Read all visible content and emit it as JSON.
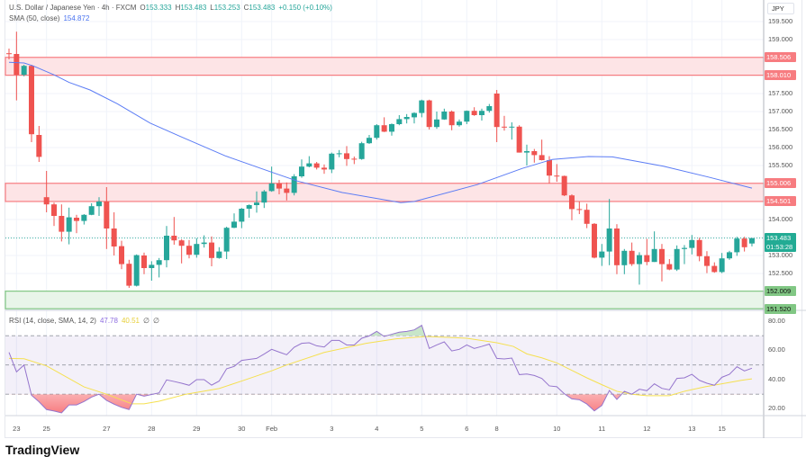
{
  "header": {
    "symbol": "U.S. Dollar / Japanese Yen · 4h · FXCM",
    "open_label": "O",
    "open": "153.333",
    "high_label": "H",
    "high": "153.483",
    "low_label": "L",
    "low": "153.253",
    "close_label": "C",
    "close": "153.483",
    "change": "+0.150 (+0.10%)"
  },
  "sma_legend": {
    "label": "SMA (50, close)",
    "value": "154.872"
  },
  "rsi_legend": {
    "label": "RSI (14, close, SMA, 14, 2)",
    "rsi": "47.78",
    "rsi_sma": "40.51",
    "extra1": "∅",
    "extra2": "∅"
  },
  "currency": "JPY",
  "logo": "TradingView",
  "colors": {
    "up": "#26a69a",
    "down": "#ef5350",
    "sma": "#5b7cf5",
    "rsi": "#9575cd",
    "rsi_sma": "#f5e050",
    "resistance": "#f77c80",
    "support": "#81c784",
    "last_price": "#22ab94"
  },
  "price_axis": [
    "159.500",
    "159.000",
    "157.500",
    "157.000",
    "156.500",
    "156.000",
    "155.500",
    "154.000",
    "153.000",
    "152.500"
  ],
  "zones": [
    {
      "type": "resistance",
      "top": 158.506,
      "bottom": 158.01,
      "top_label": "158.506",
      "bottom_label": "158.010"
    },
    {
      "type": "resistance",
      "top": 155.006,
      "bottom": 154.501,
      "top_label": "155.006",
      "bottom_label": "154.501"
    },
    {
      "type": "support",
      "top": 152.009,
      "bottom": 151.52,
      "top_label": "152.009",
      "bottom_label": "151.520"
    }
  ],
  "last_price": {
    "value": 153.483,
    "label": "153.483",
    "countdown": "01:53:28"
  },
  "rsi_axis": [
    "80.00",
    "60.00",
    "40.00",
    "20.00"
  ],
  "time_axis": [
    {
      "label": "23",
      "i": 1
    },
    {
      "label": "25",
      "i": 5
    },
    {
      "label": "27",
      "i": 13
    },
    {
      "label": "28",
      "i": 19
    },
    {
      "label": "29",
      "i": 25
    },
    {
      "label": "30",
      "i": 31
    },
    {
      "label": "Feb",
      "i": 35
    },
    {
      "label": "3",
      "i": 43
    },
    {
      "label": "4",
      "i": 49
    },
    {
      "label": "5",
      "i": 55
    },
    {
      "label": "6",
      "i": 61
    },
    {
      "label": "8",
      "i": 65
    },
    {
      "label": "10",
      "i": 73
    },
    {
      "label": "11",
      "i": 79
    },
    {
      "label": "12",
      "i": 85
    },
    {
      "label": "13",
      "i": 91
    },
    {
      "label": "15",
      "i": 95
    }
  ],
  "chart_data": {
    "type": "candlestick",
    "timeframe": "4h",
    "ylim": [
      151.3,
      159.7
    ],
    "grid": true,
    "candles_ohlc": [
      [
        158.62,
        158.75,
        158.45,
        158.6
      ],
      [
        158.6,
        159.22,
        157.31,
        158.02
      ],
      [
        158.02,
        158.3,
        157.98,
        158.27
      ],
      [
        158.27,
        158.3,
        156.15,
        156.37
      ],
      [
        156.35,
        156.6,
        155.6,
        155.74
      ],
      [
        154.62,
        155.35,
        154.2,
        154.42
      ],
      [
        154.42,
        154.47,
        153.82,
        154.1
      ],
      [
        154.1,
        154.42,
        153.39,
        153.66
      ],
      [
        153.66,
        154.33,
        153.31,
        154.06
      ],
      [
        154.05,
        154.13,
        153.62,
        153.96
      ],
      [
        153.96,
        154.15,
        153.86,
        154.13
      ],
      [
        154.13,
        154.45,
        154.12,
        154.37
      ],
      [
        154.37,
        154.62,
        154.1,
        154.5
      ],
      [
        154.5,
        154.9,
        153.18,
        153.75
      ],
      [
        153.75,
        154.2,
        153.0,
        153.25
      ],
      [
        153.26,
        153.41,
        152.62,
        152.76
      ],
      [
        152.77,
        152.88,
        152.1,
        152.16
      ],
      [
        152.16,
        153.03,
        152.14,
        153.01
      ],
      [
        153.0,
        153.08,
        152.48,
        152.65
      ],
      [
        152.65,
        152.84,
        152.3,
        152.74
      ],
      [
        152.74,
        152.93,
        152.39,
        152.87
      ],
      [
        152.87,
        153.82,
        152.67,
        153.55
      ],
      [
        153.55,
        154.07,
        153.3,
        153.42
      ],
      [
        153.42,
        153.45,
        152.78,
        153.27
      ],
      [
        153.27,
        153.43,
        152.92,
        153.02
      ],
      [
        153.02,
        153.48,
        152.94,
        153.32
      ],
      [
        153.32,
        153.56,
        153.22,
        153.36
      ],
      [
        153.36,
        153.53,
        152.7,
        152.93
      ],
      [
        152.93,
        153.23,
        152.91,
        153.11
      ],
      [
        153.11,
        153.8,
        152.9,
        153.77
      ],
      [
        153.77,
        154.17,
        153.76,
        153.94
      ],
      [
        153.94,
        154.32,
        153.76,
        154.3
      ],
      [
        154.3,
        154.42,
        154.05,
        154.4
      ],
      [
        154.4,
        154.78,
        154.19,
        154.47
      ],
      [
        154.47,
        154.82,
        154.32,
        154.78
      ],
      [
        154.79,
        155.47,
        154.77,
        155.0
      ],
      [
        155.0,
        155.1,
        154.7,
        154.86
      ],
      [
        154.86,
        155.03,
        154.53,
        154.74
      ],
      [
        154.74,
        155.26,
        154.67,
        155.2
      ],
      [
        155.2,
        155.67,
        155.16,
        155.47
      ],
      [
        155.47,
        155.76,
        155.45,
        155.56
      ],
      [
        155.56,
        155.6,
        155.39,
        155.44
      ],
      [
        155.44,
        155.53,
        155.27,
        155.39
      ],
      [
        155.39,
        155.86,
        155.29,
        155.83
      ],
      [
        155.83,
        155.93,
        155.73,
        155.84
      ],
      [
        155.84,
        156.04,
        155.49,
        155.68
      ],
      [
        155.69,
        155.75,
        155.54,
        155.68
      ],
      [
        155.68,
        156.16,
        155.66,
        156.12
      ],
      [
        156.12,
        156.35,
        156.1,
        156.27
      ],
      [
        156.27,
        156.65,
        156.22,
        156.62
      ],
      [
        156.62,
        156.84,
        156.43,
        156.44
      ],
      [
        156.44,
        156.67,
        156.33,
        156.65
      ],
      [
        156.65,
        156.9,
        156.62,
        156.79
      ],
      [
        156.79,
        156.93,
        156.67,
        156.85
      ],
      [
        156.84,
        156.98,
        156.67,
        156.96
      ],
      [
        156.96,
        157.33,
        156.84,
        157.31
      ],
      [
        157.31,
        157.33,
        156.5,
        156.57
      ],
      [
        156.57,
        157.0,
        156.52,
        156.78
      ],
      [
        156.78,
        157.08,
        156.77,
        157.0
      ],
      [
        157.0,
        157.03,
        156.48,
        156.62
      ],
      [
        156.62,
        156.78,
        156.58,
        156.72
      ],
      [
        156.72,
        157.03,
        156.65,
        157.02
      ],
      [
        157.02,
        157.12,
        156.88,
        156.9
      ],
      [
        156.9,
        157.08,
        156.75,
        157.02
      ],
      [
        157.02,
        157.21,
        156.97,
        157.15
      ],
      [
        157.5,
        157.6,
        156.15,
        156.57
      ],
      [
        156.58,
        156.88,
        156.47,
        156.56
      ],
      [
        156.56,
        156.7,
        156.22,
        156.58
      ],
      [
        156.58,
        156.62,
        155.86,
        155.86
      ],
      [
        155.86,
        156.08,
        155.5,
        155.9
      ],
      [
        155.9,
        155.96,
        155.58,
        155.79
      ],
      [
        155.79,
        156.22,
        155.64,
        155.65
      ],
      [
        155.65,
        155.76,
        155.0,
        155.22
      ],
      [
        155.22,
        155.54,
        155.05,
        155.2
      ],
      [
        155.21,
        155.22,
        154.65,
        154.67
      ],
      [
        154.67,
        154.7,
        153.98,
        154.29
      ],
      [
        154.29,
        154.5,
        154.15,
        154.27
      ],
      [
        154.27,
        154.44,
        153.76,
        153.88
      ],
      [
        153.88,
        153.9,
        152.92,
        152.94
      ],
      [
        152.94,
        153.32,
        152.71,
        153.11
      ],
      [
        153.11,
        154.57,
        152.73,
        153.75
      ],
      [
        153.75,
        153.87,
        152.48,
        152.73
      ],
      [
        152.73,
        153.18,
        152.48,
        153.13
      ],
      [
        153.13,
        153.36,
        152.71,
        152.76
      ],
      [
        152.76,
        153.09,
        152.19,
        153.01
      ],
      [
        153.01,
        153.46,
        152.73,
        152.82
      ],
      [
        152.82,
        153.67,
        152.82,
        153.18
      ],
      [
        153.18,
        153.32,
        152.28,
        152.76
      ],
      [
        152.76,
        152.9,
        152.59,
        152.61
      ],
      [
        152.61,
        153.28,
        152.57,
        153.18
      ],
      [
        153.18,
        153.29,
        152.76,
        153.21
      ],
      [
        153.21,
        153.57,
        153.03,
        153.43
      ],
      [
        153.43,
        153.49,
        152.84,
        152.98
      ],
      [
        152.98,
        153.12,
        152.51,
        152.71
      ],
      [
        152.71,
        152.81,
        152.52,
        152.54
      ],
      [
        152.54,
        153.07,
        152.51,
        152.92
      ],
      [
        152.92,
        153.13,
        152.88,
        153.09
      ],
      [
        153.09,
        153.52,
        152.99,
        153.47
      ],
      [
        153.47,
        153.52,
        153.11,
        153.23
      ],
      [
        153.333,
        153.483,
        153.253,
        153.483
      ]
    ],
    "sma50_points": [
      [
        0,
        158.37
      ],
      [
        2,
        158.35
      ],
      [
        3.2,
        158.27
      ],
      [
        6,
        158.02
      ],
      [
        8,
        157.81
      ],
      [
        10.8,
        157.6
      ],
      [
        14.4,
        157.22
      ],
      [
        18.8,
        156.68
      ],
      [
        22.8,
        156.31
      ],
      [
        28.8,
        155.77
      ],
      [
        34.8,
        155.33
      ],
      [
        38.4,
        155.07
      ],
      [
        44.4,
        154.75
      ],
      [
        52.2,
        154.47
      ],
      [
        54,
        154.5
      ],
      [
        62.4,
        154.97
      ],
      [
        65.2,
        155.18
      ],
      [
        68.4,
        155.42
      ],
      [
        72.4,
        155.67
      ],
      [
        77.2,
        155.75
      ],
      [
        80.4,
        155.74
      ],
      [
        87.2,
        155.48
      ],
      [
        93.2,
        155.18
      ],
      [
        99,
        154.872
      ]
    ],
    "rsi": {
      "ylim": [
        12,
        85
      ],
      "levels": [
        70,
        50,
        30
      ],
      "values": [
        58.6,
        45.3,
        50,
        29.3,
        24.8,
        19.5,
        18.5,
        17.2,
        22.7,
        22.7,
        25,
        28,
        30,
        25.8,
        23.2,
        21,
        19.5,
        30,
        28.7,
        29.8,
        30.9,
        39.8,
        38.7,
        37.5,
        36.1,
        40,
        40,
        36.2,
        39,
        47.4,
        49,
        53.1,
        53.8,
        54.5,
        57.5,
        60.7,
        58.8,
        57,
        62.1,
        64.8,
        65.2,
        63.1,
        62.3,
        66.8,
        66.8,
        63.7,
        63.7,
        68.3,
        69.9,
        73,
        69.5,
        71,
        72.4,
        73,
        74,
        77.1,
        61.3,
        63.7,
        65.8,
        59.6,
        60.7,
        63.7,
        61.3,
        62.7,
        64.3,
        54.5,
        54.1,
        54.7,
        43.4,
        43.8,
        42.8,
        40.8,
        35.7,
        35.1,
        30.3,
        26.8,
        26.2,
        23.3,
        18.6,
        22.3,
        32.6,
        26.4,
        32,
        30,
        33.4,
        32.4,
        37.1,
        34,
        33,
        40.8,
        41.2,
        43.6,
        39.5,
        37.5,
        36.1,
        41.6,
        43.6,
        48.8,
        45.9,
        47.78
      ],
      "sma_points": [
        [
          0,
          54.5
        ],
        [
          2,
          54.3
        ],
        [
          5,
          49.4
        ],
        [
          10,
          35
        ],
        [
          13,
          30
        ],
        [
          16.4,
          23.4
        ],
        [
          18,
          23.4
        ],
        [
          20,
          25.2
        ],
        [
          23.6,
          30
        ],
        [
          28,
          33.9
        ],
        [
          31,
          39
        ],
        [
          35,
          46
        ],
        [
          37,
          50
        ],
        [
          42,
          58.6
        ],
        [
          47.6,
          64.8
        ],
        [
          51.6,
          67.9
        ],
        [
          55.6,
          69.5
        ],
        [
          61,
          68.3
        ],
        [
          65,
          65.2
        ],
        [
          67.2,
          62.7
        ],
        [
          69,
          57.6
        ],
        [
          71,
          54.9
        ],
        [
          73,
          51.4
        ],
        [
          75,
          46.3
        ],
        [
          77,
          41.2
        ],
        [
          79,
          36.5
        ],
        [
          81,
          32
        ],
        [
          83,
          30
        ],
        [
          85,
          29
        ],
        [
          88,
          29
        ],
        [
          90,
          32
        ],
        [
          92.8,
          35.1
        ],
        [
          95,
          37.1
        ],
        [
          97.6,
          39.5
        ],
        [
          99,
          40.51
        ]
      ]
    }
  }
}
